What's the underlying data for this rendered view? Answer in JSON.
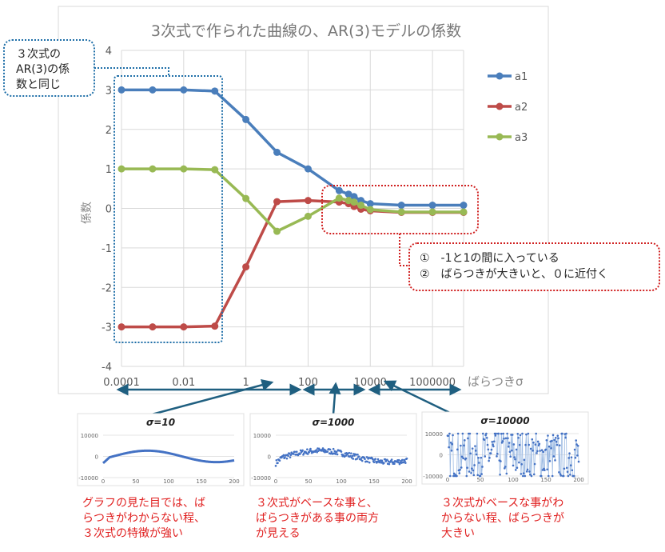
{
  "chart_data": [
    {
      "type": "line",
      "title": "3次式で作られた曲線の、AR(3)モデルの係数",
      "xlabel": "ばらつきσ",
      "ylabel": "係数",
      "x_scale": "log",
      "xlim": [
        0.0001,
        10000000
      ],
      "ylim": [
        -4,
        4
      ],
      "xticks": [
        "0.0001",
        "0.01",
        "1",
        "100",
        "10000",
        "1000000"
      ],
      "yticks": [
        "4",
        "3",
        "2",
        "1",
        "0",
        "-1",
        "-2",
        "-3",
        "-4"
      ],
      "grid": true,
      "legend": "right",
      "x": [
        0.0001,
        0.001,
        0.01,
        0.1,
        1,
        10,
        100,
        1000,
        2000,
        3000,
        5000,
        10000,
        100000,
        1000000,
        10000000
      ],
      "series": [
        {
          "name": "a1",
          "color": "#4a7ebb",
          "values": [
            3,
            3,
            3,
            2.97,
            2.25,
            1.42,
            1.0,
            0.45,
            0.36,
            0.3,
            0.2,
            0.12,
            0.08,
            0.08,
            0.08
          ]
        },
        {
          "name": "a2",
          "color": "#be4b48",
          "values": [
            -3,
            -3,
            -3,
            -2.98,
            -1.48,
            0.17,
            0.2,
            0.16,
            0.12,
            0.05,
            -0.02,
            -0.06,
            -0.1,
            -0.1,
            -0.1
          ]
        },
        {
          "name": "a3",
          "color": "#98b954",
          "values": [
            1,
            1,
            1,
            0.98,
            0.25,
            -0.58,
            -0.2,
            0.26,
            0.2,
            0.16,
            0.08,
            -0.03,
            -0.09,
            -0.09,
            -0.09
          ]
        }
      ]
    },
    {
      "type": "line",
      "title": "σ=10",
      "yticks": [
        "10000",
        "0",
        "-10000"
      ],
      "xticks": [
        "0",
        "50",
        "100",
        "150",
        "200"
      ]
    },
    {
      "type": "scatter",
      "title": "σ=1000",
      "yticks": [
        "10000",
        "0",
        "-10000"
      ],
      "xticks": [
        "0",
        "50",
        "100",
        "150",
        "200"
      ]
    },
    {
      "type": "line",
      "title": "σ=10000",
      "yticks": [
        "10000",
        "0",
        "-10000"
      ],
      "xticks": [
        "0",
        "50",
        "100",
        "150",
        "200"
      ]
    }
  ],
  "annotations": {
    "left_callout": [
      "３次式の",
      "AR(3)の係",
      "数と同じ"
    ],
    "right_callout": [
      "①　-1と1の間に入っている",
      "②　ばらつきが大きいと、０に近付く"
    ],
    "notes": [
      [
        "グラフの見た目では、ば",
        "らつきがわからない程、",
        "３次式の特徴が強い"
      ],
      [
        "３次式がベースな事と、",
        "ばらつきがある事の両方",
        "が見える"
      ],
      [
        "３次式がベースな事がわ",
        "からない程、ばらつきが",
        "大きい"
      ]
    ]
  },
  "colors": {
    "annotation_blue": "#1f6fa8",
    "annotation_red": "#d02020",
    "arrow": "#1f5f80"
  }
}
